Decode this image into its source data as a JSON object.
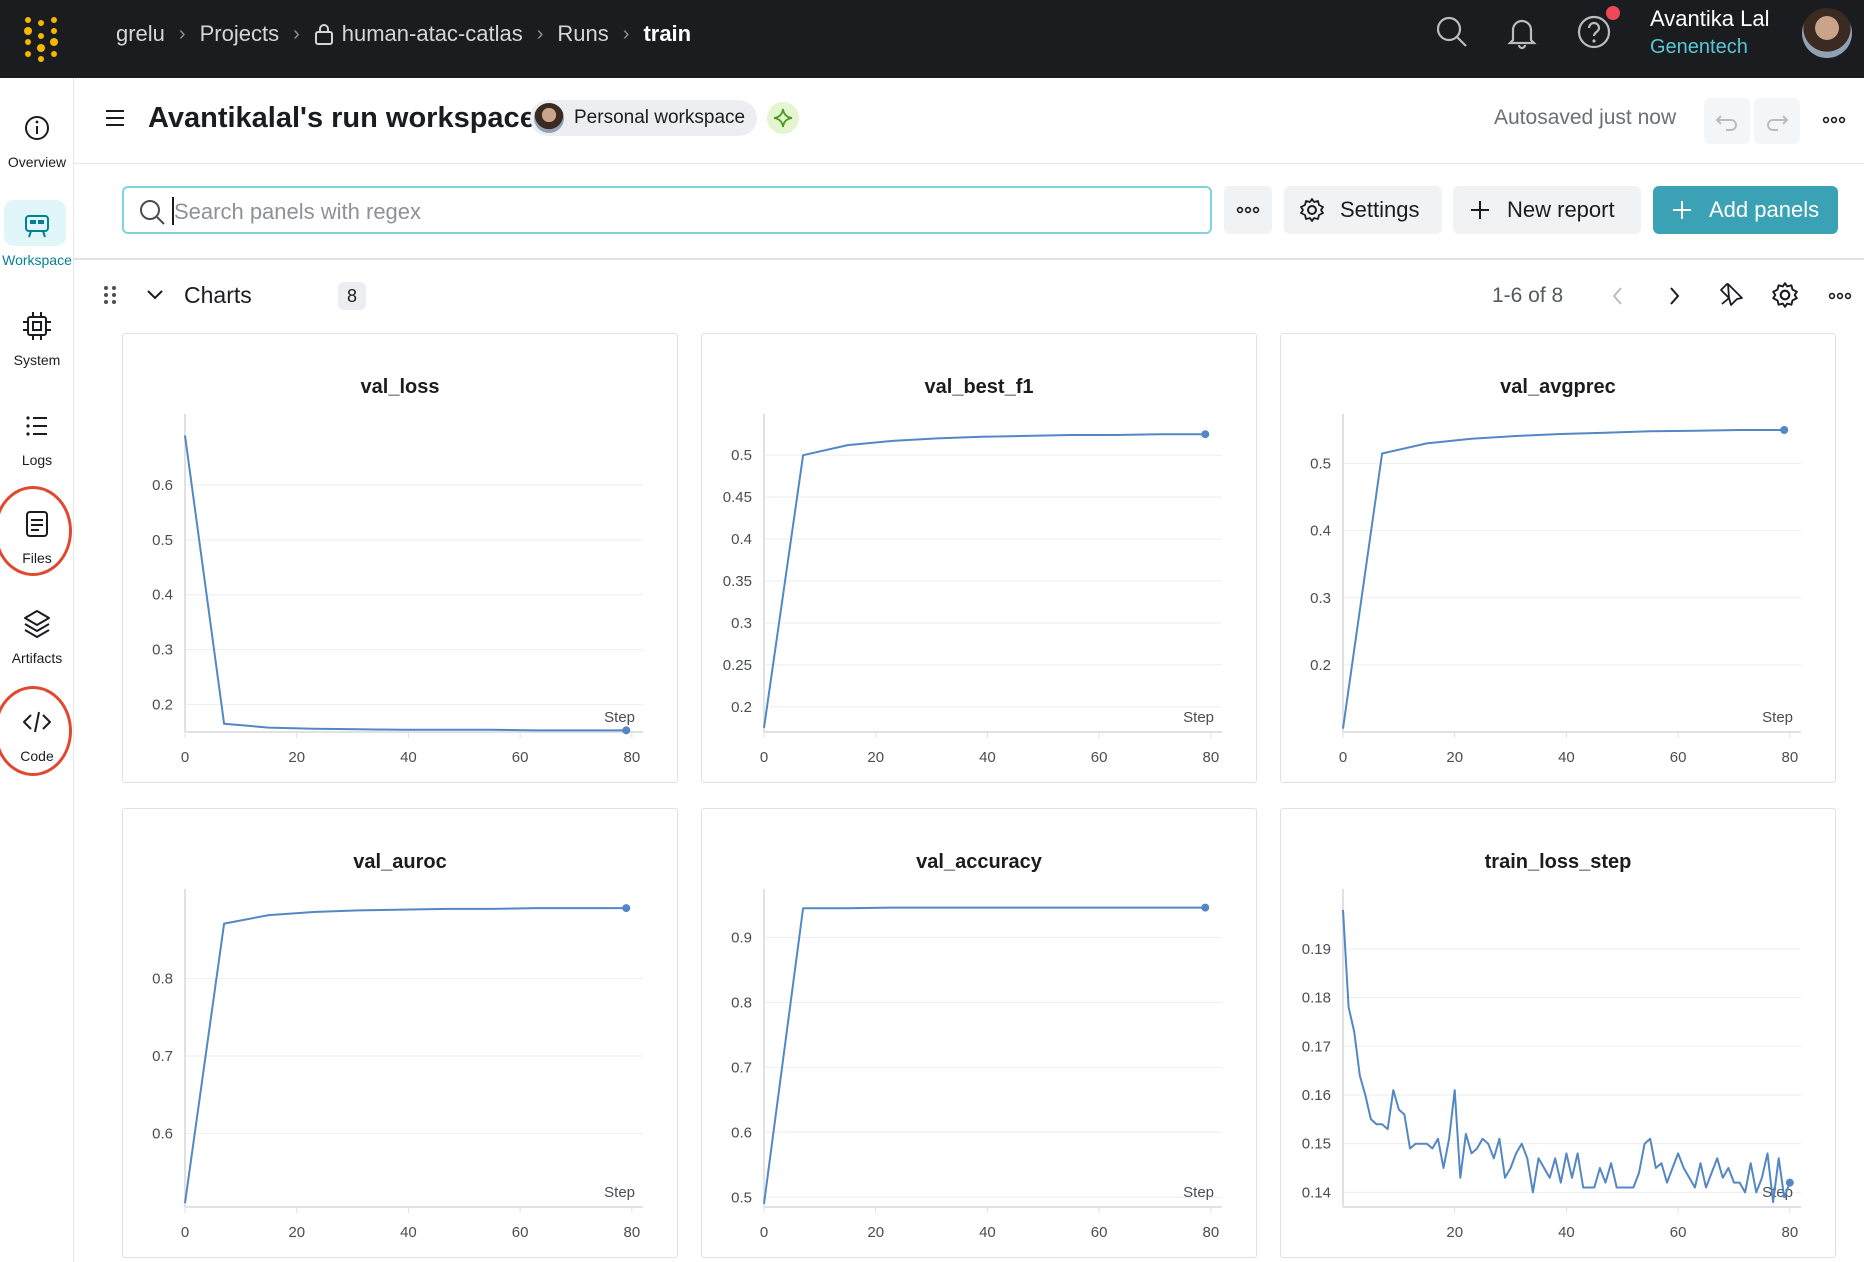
{
  "topbar": {
    "breadcrumbs": [
      "grelu",
      "Projects",
      "human-atac-catlas",
      "Runs",
      "train"
    ],
    "user_name": "Avantika Lal",
    "user_org": "Genentech"
  },
  "sidebar": {
    "items": [
      {
        "label": "Overview",
        "icon": "info-icon"
      },
      {
        "label": "Workspace",
        "icon": "workspace-icon"
      },
      {
        "label": "System",
        "icon": "chip-icon"
      },
      {
        "label": "Logs",
        "icon": "list-icon"
      },
      {
        "label": "Files",
        "icon": "file-icon"
      },
      {
        "label": "Artifacts",
        "icon": "layers-icon"
      },
      {
        "label": "Code",
        "icon": "code-icon"
      }
    ],
    "active": "Workspace"
  },
  "header": {
    "title": "Avantikalal's run workspace",
    "workspace_chip": "Personal workspace",
    "autosave": "Autosaved just now"
  },
  "toolbar": {
    "search_placeholder": "Search panels with regex",
    "settings_label": "Settings",
    "new_report_label": "New report",
    "add_panels_label": "Add panels"
  },
  "section": {
    "title": "Charts",
    "count": "8",
    "pager": "1-6 of 8"
  },
  "colors": {
    "accent": "#3aa2b4",
    "line": "#5387c5",
    "topbar": "#1a1c1f"
  },
  "chart_data": [
    {
      "type": "line",
      "title": "val_loss",
      "xlabel": "Step",
      "xlim": [
        0,
        82
      ],
      "ylim": [
        0.15,
        0.7
      ],
      "xticks": [
        "0",
        "20",
        "40",
        "60",
        "80"
      ],
      "yticks": [
        {
          "v": 0.2,
          "t": "0.2"
        },
        {
          "v": 0.3,
          "t": "0.3"
        },
        {
          "v": 0.4,
          "t": "0.4"
        },
        {
          "v": 0.5,
          "t": "0.5"
        },
        {
          "v": 0.6,
          "t": "0.6"
        }
      ],
      "x": [
        0,
        7,
        15,
        23,
        31,
        39,
        47,
        55,
        63,
        71,
        79
      ],
      "y": [
        0.69,
        0.165,
        0.158,
        0.156,
        0.155,
        0.154,
        0.154,
        0.154,
        0.153,
        0.153,
        0.153
      ]
    },
    {
      "type": "line",
      "title": "val_best_f1",
      "xlabel": "Step",
      "xlim": [
        0,
        82
      ],
      "ylim": [
        0.17,
        0.53
      ],
      "xticks": [
        "0",
        "20",
        "40",
        "60",
        "80"
      ],
      "yticks": [
        {
          "v": 0.2,
          "t": "0.2"
        },
        {
          "v": 0.25,
          "t": "0.25"
        },
        {
          "v": 0.3,
          "t": "0.3"
        },
        {
          "v": 0.35,
          "t": "0.35"
        },
        {
          "v": 0.4,
          "t": "0.4"
        },
        {
          "v": 0.45,
          "t": "0.45"
        },
        {
          "v": 0.5,
          "t": "0.5"
        }
      ],
      "x": [
        0,
        7,
        15,
        23,
        31,
        39,
        47,
        55,
        63,
        71,
        79
      ],
      "y": [
        0.175,
        0.5,
        0.512,
        0.517,
        0.52,
        0.522,
        0.523,
        0.524,
        0.524,
        0.525,
        0.525
      ]
    },
    {
      "type": "line",
      "title": "val_avgprec",
      "xlabel": "Step",
      "xlim": [
        0,
        82
      ],
      "ylim": [
        0.1,
        0.55
      ],
      "xticks": [
        "0",
        "20",
        "40",
        "60",
        "80"
      ],
      "yticks": [
        {
          "v": 0.2,
          "t": "0.2"
        },
        {
          "v": 0.3,
          "t": "0.3"
        },
        {
          "v": 0.4,
          "t": "0.4"
        },
        {
          "v": 0.5,
          "t": "0.5"
        }
      ],
      "x": [
        0,
        7,
        15,
        23,
        31,
        39,
        47,
        55,
        63,
        71,
        79
      ],
      "y": [
        0.105,
        0.515,
        0.53,
        0.537,
        0.541,
        0.544,
        0.546,
        0.548,
        0.549,
        0.55,
        0.55
      ]
    },
    {
      "type": "line",
      "title": "val_auroc",
      "xlabel": "Step",
      "xlim": [
        0,
        82
      ],
      "ylim": [
        0.505,
        0.895
      ],
      "xticks": [
        "0",
        "20",
        "40",
        "60",
        "80"
      ],
      "yticks": [
        {
          "v": 0.6,
          "t": "0.6"
        },
        {
          "v": 0.7,
          "t": "0.7"
        },
        {
          "v": 0.8,
          "t": "0.8"
        }
      ],
      "x": [
        0,
        7,
        15,
        23,
        31,
        39,
        47,
        55,
        63,
        71,
        79
      ],
      "y": [
        0.51,
        0.871,
        0.882,
        0.886,
        0.888,
        0.889,
        0.89,
        0.89,
        0.891,
        0.891,
        0.891
      ]
    },
    {
      "type": "line",
      "title": "val_accuracy",
      "xlabel": "Step",
      "xlim": [
        0,
        82
      ],
      "ylim": [
        0.485,
        0.95
      ],
      "xticks": [
        "0",
        "20",
        "40",
        "60",
        "80"
      ],
      "yticks": [
        {
          "v": 0.5,
          "t": "0.5"
        },
        {
          "v": 0.6,
          "t": "0.6"
        },
        {
          "v": 0.7,
          "t": "0.7"
        },
        {
          "v": 0.8,
          "t": "0.8"
        },
        {
          "v": 0.9,
          "t": "0.9"
        }
      ],
      "x": [
        0,
        7,
        15,
        23,
        31,
        39,
        47,
        55,
        63,
        71,
        79
      ],
      "y": [
        0.49,
        0.945,
        0.945,
        0.946,
        0.946,
        0.946,
        0.946,
        0.946,
        0.946,
        0.946,
        0.946
      ]
    },
    {
      "type": "line",
      "title": "train_loss_step",
      "xlabel": "Step",
      "xlim": [
        0,
        82
      ],
      "ylim": [
        0.137,
        0.199
      ],
      "xticks": [
        "20",
        "40",
        "60",
        "80"
      ],
      "yticks": [
        {
          "v": 0.14,
          "t": "0.14"
        },
        {
          "v": 0.15,
          "t": "0.15"
        },
        {
          "v": 0.16,
          "t": "0.16"
        },
        {
          "v": 0.17,
          "t": "0.17"
        },
        {
          "v": 0.18,
          "t": "0.18"
        },
        {
          "v": 0.19,
          "t": "0.19"
        }
      ],
      "x": [
        0,
        1,
        2,
        3,
        4,
        5,
        6,
        7,
        8,
        9,
        10,
        11,
        12,
        13,
        14,
        15,
        16,
        17,
        18,
        19,
        20,
        21,
        22,
        23,
        24,
        25,
        26,
        27,
        28,
        29,
        30,
        31,
        32,
        33,
        34,
        35,
        36,
        37,
        38,
        39,
        40,
        41,
        42,
        43,
        44,
        45,
        46,
        47,
        48,
        49,
        50,
        51,
        52,
        53,
        54,
        55,
        56,
        57,
        58,
        59,
        60,
        61,
        62,
        63,
        64,
        65,
        66,
        67,
        68,
        69,
        70,
        71,
        72,
        73,
        74,
        75,
        76,
        77,
        78,
        79,
        80
      ],
      "y": [
        0.198,
        0.178,
        0.173,
        0.164,
        0.16,
        0.155,
        0.154,
        0.154,
        0.153,
        0.161,
        0.157,
        0.156,
        0.149,
        0.15,
        0.15,
        0.15,
        0.149,
        0.151,
        0.145,
        0.151,
        0.161,
        0.143,
        0.152,
        0.148,
        0.149,
        0.151,
        0.15,
        0.147,
        0.151,
        0.143,
        0.145,
        0.148,
        0.15,
        0.147,
        0.14,
        0.147,
        0.145,
        0.143,
        0.147,
        0.142,
        0.148,
        0.143,
        0.148,
        0.141,
        0.141,
        0.141,
        0.145,
        0.142,
        0.146,
        0.141,
        0.141,
        0.141,
        0.141,
        0.144,
        0.15,
        0.151,
        0.145,
        0.146,
        0.142,
        0.145,
        0.148,
        0.145,
        0.143,
        0.141,
        0.146,
        0.141,
        0.144,
        0.147,
        0.143,
        0.145,
        0.142,
        0.142,
        0.14,
        0.146,
        0.14,
        0.143,
        0.148,
        0.138,
        0.147,
        0.139,
        0.142
      ]
    }
  ]
}
